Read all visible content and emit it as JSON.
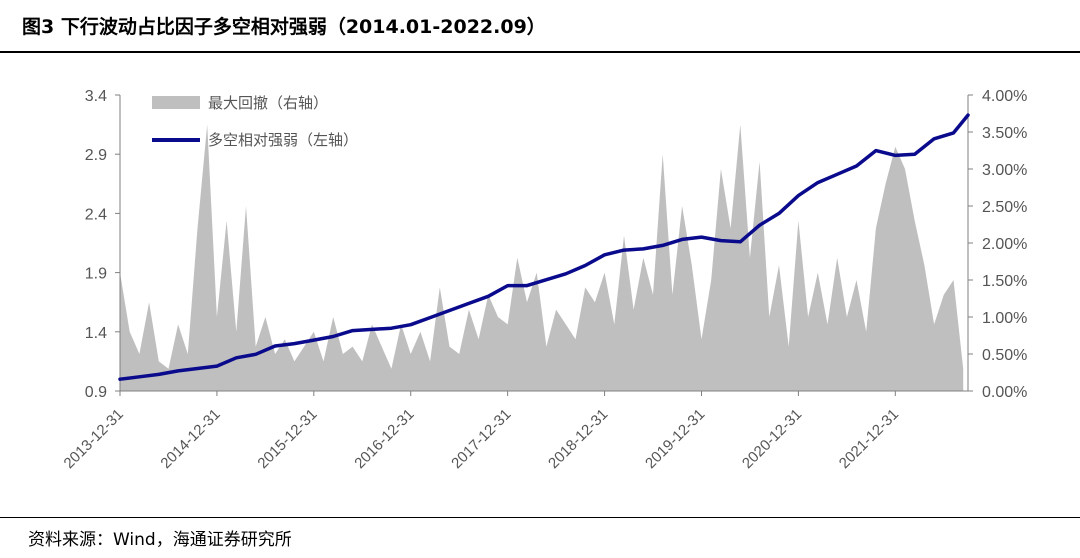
{
  "figure": {
    "title": "图3   下行波动占比因子多空相对强弱（2014.01-2022.09）",
    "source": "资料来源：Wind，海通证券研究所"
  },
  "colors": {
    "line": "#0a0a8c",
    "area": "#bfbfbf",
    "axis": "#808080",
    "text": "#555555"
  },
  "chart_data": {
    "type": "line",
    "title": "",
    "x_tick_labels": [
      "2013-12-31",
      "2014-12-31",
      "2015-12-31",
      "2016-12-31",
      "2017-12-31",
      "2018-12-31",
      "2019-12-31",
      "2020-12-31",
      "2021-12-31"
    ],
    "y_left_ticks": [
      "0.9",
      "1.4",
      "1.9",
      "2.4",
      "2.9",
      "3.4"
    ],
    "y_right_ticks": [
      "0.00%",
      "0.50%",
      "1.00%",
      "1.50%",
      "2.00%",
      "2.50%",
      "3.00%",
      "3.50%",
      "4.00%"
    ],
    "ylim_left": [
      0.9,
      3.4
    ],
    "ylim_right": [
      0,
      4
    ],
    "legend": {
      "position": "top-left"
    },
    "series": [
      {
        "name": "多空相对强弱（左轴）",
        "type": "line",
        "axis": "left",
        "x": [
          2014.0,
          2014.2,
          2014.4,
          2014.6,
          2014.8,
          2015.0,
          2015.2,
          2015.4,
          2015.6,
          2015.8,
          2016.0,
          2016.2,
          2016.4,
          2016.6,
          2016.8,
          2017.0,
          2017.2,
          2017.4,
          2017.6,
          2017.8,
          2018.0,
          2018.2,
          2018.4,
          2018.6,
          2018.8,
          2019.0,
          2019.2,
          2019.4,
          2019.6,
          2019.8,
          2020.0,
          2020.2,
          2020.4,
          2020.6,
          2020.8,
          2021.0,
          2021.2,
          2021.4,
          2021.6,
          2021.8,
          2022.0,
          2022.2,
          2022.4,
          2022.6,
          2022.75
        ],
        "values": [
          1.0,
          1.02,
          1.04,
          1.07,
          1.09,
          1.11,
          1.18,
          1.21,
          1.28,
          1.3,
          1.33,
          1.36,
          1.41,
          1.42,
          1.43,
          1.46,
          1.52,
          1.58,
          1.64,
          1.7,
          1.79,
          1.79,
          1.84,
          1.89,
          1.96,
          2.05,
          2.09,
          2.1,
          2.13,
          2.18,
          2.2,
          2.17,
          2.16,
          2.3,
          2.4,
          2.55,
          2.66,
          2.73,
          2.8,
          2.93,
          2.89,
          2.9,
          3.03,
          3.08,
          3.23
        ]
      },
      {
        "name": "最大回撤（右轴）",
        "type": "area",
        "axis": "right",
        "x": [
          2014.0,
          2014.1,
          2014.2,
          2014.3,
          2014.4,
          2014.5,
          2014.6,
          2014.7,
          2014.8,
          2014.9,
          2015.0,
          2015.1,
          2015.2,
          2015.3,
          2015.4,
          2015.5,
          2015.6,
          2015.7,
          2015.8,
          2015.9,
          2016.0,
          2016.1,
          2016.2,
          2016.3,
          2016.4,
          2016.5,
          2016.6,
          2016.7,
          2016.8,
          2016.9,
          2017.0,
          2017.1,
          2017.2,
          2017.3,
          2017.4,
          2017.5,
          2017.6,
          2017.7,
          2017.8,
          2017.9,
          2018.0,
          2018.1,
          2018.2,
          2018.3,
          2018.4,
          2018.5,
          2018.6,
          2018.7,
          2018.8,
          2018.9,
          2019.0,
          2019.1,
          2019.2,
          2019.3,
          2019.4,
          2019.5,
          2019.6,
          2019.7,
          2019.8,
          2019.9,
          2020.0,
          2020.1,
          2020.2,
          2020.3,
          2020.4,
          2020.5,
          2020.6,
          2020.7,
          2020.8,
          2020.9,
          2021.0,
          2021.1,
          2021.2,
          2021.3,
          2021.4,
          2021.5,
          2021.6,
          2021.7,
          2021.8,
          2021.9,
          2022.0,
          2022.1,
          2022.2,
          2022.3,
          2022.4,
          2022.5,
          2022.6,
          2022.7
        ],
        "values": [
          1.6,
          0.8,
          0.5,
          1.2,
          0.4,
          0.3,
          0.9,
          0.5,
          2.2,
          3.6,
          1.0,
          2.3,
          0.8,
          2.5,
          0.6,
          1.0,
          0.5,
          0.7,
          0.4,
          0.6,
          0.8,
          0.4,
          1.0,
          0.5,
          0.6,
          0.4,
          0.9,
          0.6,
          0.3,
          0.9,
          0.5,
          0.8,
          0.4,
          1.4,
          0.6,
          0.5,
          1.1,
          0.7,
          1.3,
          1.0,
          0.9,
          1.8,
          1.2,
          1.6,
          0.6,
          1.1,
          0.9,
          0.7,
          1.4,
          1.2,
          1.6,
          0.9,
          2.1,
          1.1,
          1.8,
          1.3,
          3.2,
          1.3,
          2.5,
          1.7,
          0.7,
          1.5,
          3.0,
          2.2,
          3.6,
          1.8,
          3.1,
          1.0,
          1.7,
          0.6,
          2.3,
          1.0,
          1.6,
          0.9,
          1.8,
          1.0,
          1.5,
          0.8,
          2.2,
          2.8,
          3.3,
          3.0,
          2.3,
          1.7,
          0.9,
          1.3,
          1.5,
          0.3
        ]
      }
    ]
  }
}
